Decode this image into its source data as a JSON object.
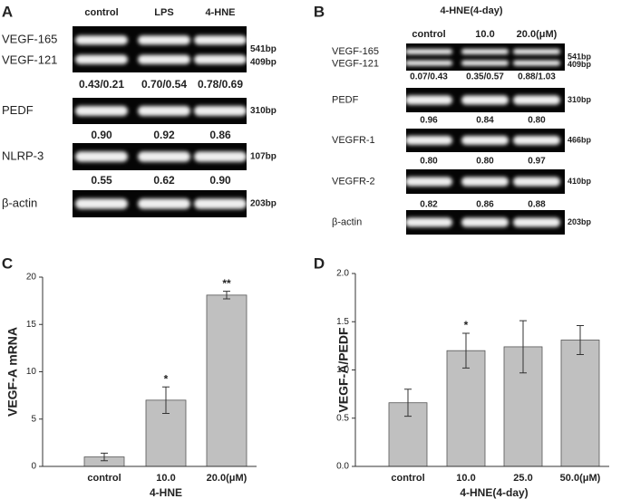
{
  "gel_panels": [
    {
      "label": "A",
      "columns": [
        "control",
        "LPS",
        "4-HNE"
      ],
      "rows": [
        {
          "names": [
            "VEGF-165",
            "VEGF-121"
          ],
          "sizes": [
            "541bp",
            "409bp"
          ],
          "ratios": [
            "0.43/0.21",
            "0.70/0.54",
            "0.78/0.69"
          ]
        },
        {
          "names": [
            "PEDF"
          ],
          "sizes": [
            "310bp"
          ],
          "ratios": [
            "0.90",
            "0.92",
            "0.86"
          ]
        },
        {
          "names": [
            "NLRP-3"
          ],
          "sizes": [
            "107bp"
          ],
          "ratios": [
            "0.55",
            "0.62",
            "0.90"
          ]
        },
        {
          "names": [
            "β-actin"
          ],
          "sizes": [
            "203bp"
          ]
        }
      ]
    },
    {
      "label": "B",
      "title": "4-HNE(4-day)",
      "columns": [
        "control",
        "10.0",
        "20.0(μM)"
      ],
      "rows": [
        {
          "names": [
            "VEGF-165",
            "VEGF-121"
          ],
          "sizes": [
            "541bp",
            "409bp"
          ],
          "ratios": [
            "0.07/0.43",
            "0.35/0.57",
            "0.88/1.03"
          ]
        },
        {
          "names": [
            "PEDF"
          ],
          "sizes": [
            "310bp"
          ],
          "ratios": [
            "0.96",
            "0.84",
            "0.80"
          ]
        },
        {
          "names": [
            "VEGFR-1"
          ],
          "sizes": [
            "466bp"
          ],
          "ratios": [
            "0.80",
            "0.80",
            "0.97"
          ]
        },
        {
          "names": [
            "VEGFR-2"
          ],
          "sizes": [
            "410bp"
          ],
          "ratios": [
            "0.82",
            "0.86",
            "0.88"
          ]
        },
        {
          "names": [
            "β-actin"
          ],
          "sizes": [
            "203bp"
          ]
        }
      ]
    }
  ],
  "chart_data": [
    {
      "type": "bar",
      "panel_label": "C",
      "categories": [
        "control",
        "10.0",
        "20.0(μM)"
      ],
      "values": [
        1.0,
        7.0,
        18.1
      ],
      "errors": [
        0.4,
        1.4,
        0.4
      ],
      "value_annotations": [
        null,
        "*",
        "**"
      ],
      "x_label": "4-HNE",
      "y_label": "VEGF-A mRNA",
      "ylim": [
        0,
        20
      ],
      "yticks": [
        0,
        5,
        10,
        15,
        20
      ],
      "color": "#c0c0c0"
    },
    {
      "type": "bar",
      "panel_label": "D",
      "categories": [
        "control",
        "10.0",
        "25.0",
        "50.0(μM)"
      ],
      "values": [
        0.66,
        1.2,
        1.24,
        1.31
      ],
      "errors": [
        0.14,
        0.18,
        0.27,
        0.15
      ],
      "value_annotations": [
        null,
        "*",
        null,
        null
      ],
      "x_label": "4-HNE(4-day)",
      "y_label": "VEGF-A/PEDF",
      "ylim": [
        0,
        2
      ],
      "yticks": [
        {
          "value": 0,
          "label": "0.0"
        },
        0.5,
        {
          "value": 1,
          "label": "1.0"
        },
        1.5,
        {
          "value": 2,
          "label": "2.0"
        }
      ],
      "color": "#c0c0c0"
    }
  ]
}
